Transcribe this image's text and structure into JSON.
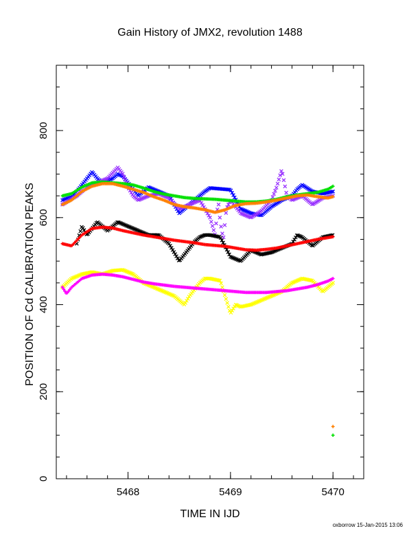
{
  "chart_data": {
    "type": "scatter",
    "title": "Gain History of JMX2, revolution 1488",
    "xlabel": "TIME IN IJD",
    "ylabel": "POSITION OF Cd CALIBRATION PEAKS",
    "xlim": [
      5467.3,
      5470.3
    ],
    "ylim": [
      0,
      950
    ],
    "x_ticks": [
      5468,
      5469,
      5470
    ],
    "y_ticks": [
      0,
      200,
      400,
      600,
      800
    ],
    "grid": false,
    "footer": "oxborrow 15-Jan-2015 13:06",
    "legend_markers": [
      {
        "color": "#ff8000",
        "x": 5470.0,
        "y": 120
      },
      {
        "color": "#00e000",
        "x": 5470.0,
        "y": 100
      }
    ],
    "series": [
      {
        "color": "#0000ff",
        "marker": "x",
        "x": [
          5467.36,
          5467.45,
          5467.5,
          5467.55,
          5467.6,
          5467.65,
          5467.7,
          5467.75,
          5467.8,
          5467.85,
          5467.9,
          5467.95,
          5468.0,
          5468.05,
          5468.1,
          5468.2,
          5468.3,
          5468.4,
          5468.5,
          5468.55,
          5468.6,
          5468.65,
          5468.7,
          5468.75,
          5468.8,
          5468.9,
          5469.0,
          5469.1,
          5469.2,
          5469.3,
          5469.4,
          5469.5,
          5469.6,
          5469.65,
          5469.7,
          5469.8,
          5469.9,
          5470.0
        ],
        "y": [
          640,
          648,
          660,
          675,
          690,
          705,
          690,
          680,
          685,
          690,
          700,
          695,
          680,
          665,
          650,
          670,
          660,
          650,
          610,
          620,
          630,
          640,
          650,
          660,
          668,
          666,
          664,
          620,
          610,
          605,
          625,
          640,
          650,
          665,
          675,
          660,
          655,
          660
        ]
      },
      {
        "color": "#9933ff",
        "marker": "x",
        "x": [
          5467.36,
          5467.5,
          5467.6,
          5467.7,
          5467.8,
          5467.9,
          5467.95,
          5468.0,
          5468.05,
          5468.1,
          5468.2,
          5468.3,
          5468.4,
          5468.5,
          5468.6,
          5468.7,
          5468.8,
          5468.85,
          5468.88,
          5468.9,
          5468.93,
          5468.96,
          5469.0,
          5469.1,
          5469.2,
          5469.3,
          5469.4,
          5469.45,
          5469.5,
          5469.55,
          5469.6,
          5469.7,
          5469.8,
          5469.9,
          5470.0
        ],
        "y": [
          630,
          650,
          670,
          680,
          690,
          715,
          700,
          670,
          650,
          640,
          650,
          655,
          645,
          620,
          630,
          640,
          600,
          560,
          640,
          590,
          550,
          620,
          640,
          610,
          600,
          615,
          640,
          670,
          710,
          650,
          640,
          650,
          630,
          645,
          650
        ]
      },
      {
        "color": "#00e000",
        "marker": "+",
        "x": [
          5467.36,
          5467.45,
          5467.55,
          5467.65,
          5467.75,
          5467.85,
          5467.95,
          5468.05,
          5468.15,
          5468.25,
          5468.35,
          5468.45,
          5468.55,
          5468.65,
          5468.75,
          5468.85,
          5468.95,
          5469.05,
          5469.15,
          5469.25,
          5469.35,
          5469.45,
          5469.55,
          5469.65,
          5469.75,
          5469.85,
          5469.95,
          5470.0
        ],
        "y": [
          650,
          655,
          670,
          680,
          682,
          680,
          678,
          675,
          668,
          660,
          654,
          650,
          646,
          644,
          643,
          642,
          640,
          638,
          636,
          636,
          638,
          642,
          648,
          652,
          655,
          658,
          665,
          672
        ]
      },
      {
        "color": "#ff8000",
        "marker": "+",
        "x": [
          5467.36,
          5467.45,
          5467.55,
          5467.65,
          5467.75,
          5467.85,
          5467.95,
          5468.05,
          5468.15,
          5468.25,
          5468.35,
          5468.45,
          5468.55,
          5468.65,
          5468.75,
          5468.85,
          5468.95,
          5469.05,
          5469.15,
          5469.25,
          5469.35,
          5469.45,
          5469.55,
          5469.65,
          5469.75,
          5469.85,
          5469.95,
          5470.0
        ],
        "y": [
          630,
          640,
          660,
          672,
          678,
          678,
          672,
          665,
          658,
          648,
          640,
          630,
          625,
          622,
          618,
          612,
          618,
          628,
          632,
          633,
          636,
          640,
          645,
          650,
          652,
          648,
          645,
          648
        ]
      },
      {
        "color": "#000000",
        "marker": "x",
        "x": [
          5467.5,
          5467.55,
          5467.6,
          5467.7,
          5467.8,
          5467.9,
          5468.0,
          5468.1,
          5468.2,
          5468.3,
          5468.4,
          5468.5,
          5468.55,
          5468.6,
          5468.65,
          5468.7,
          5468.75,
          5468.8,
          5468.9,
          5469.0,
          5469.1,
          5469.2,
          5469.3,
          5469.4,
          5469.5,
          5469.6,
          5469.65,
          5469.7,
          5469.75,
          5469.8,
          5469.9,
          5470.0
        ],
        "y": [
          540,
          580,
          560,
          590,
          570,
          590,
          580,
          570,
          560,
          560,
          540,
          500,
          515,
          530,
          545,
          555,
          560,
          560,
          555,
          510,
          500,
          525,
          515,
          520,
          530,
          540,
          560,
          555,
          545,
          535,
          555,
          560
        ]
      },
      {
        "color": "#ff0000",
        "marker": "+",
        "x": [
          5467.36,
          5467.45,
          5467.55,
          5467.65,
          5467.75,
          5467.85,
          5467.95,
          5468.05,
          5468.15,
          5468.25,
          5468.35,
          5468.45,
          5468.55,
          5468.65,
          5468.75,
          5468.85,
          5468.95,
          5469.05,
          5469.15,
          5469.25,
          5469.35,
          5469.45,
          5469.55,
          5469.65,
          5469.75,
          5469.85,
          5469.95,
          5470.0
        ],
        "y": [
          540,
          535,
          560,
          575,
          578,
          576,
          570,
          565,
          560,
          556,
          552,
          548,
          545,
          542,
          538,
          536,
          534,
          530,
          526,
          525,
          527,
          530,
          535,
          540,
          545,
          550,
          554,
          556
        ]
      },
      {
        "color": "#ffff00",
        "marker": "x",
        "x": [
          5467.36,
          5467.45,
          5467.55,
          5467.65,
          5467.75,
          5467.85,
          5467.95,
          5468.05,
          5468.15,
          5468.25,
          5468.35,
          5468.45,
          5468.55,
          5468.6,
          5468.65,
          5468.7,
          5468.75,
          5468.8,
          5468.9,
          5469.0,
          5469.05,
          5469.1,
          5469.2,
          5469.3,
          5469.4,
          5469.5,
          5469.6,
          5469.7,
          5469.8,
          5469.9,
          5470.0
        ],
        "y": [
          440,
          460,
          470,
          475,
          470,
          478,
          480,
          470,
          450,
          440,
          430,
          420,
          400,
          420,
          435,
          450,
          460,
          460,
          455,
          380,
          400,
          395,
          400,
          410,
          420,
          430,
          450,
          460,
          455,
          430,
          450
        ]
      },
      {
        "color": "#ff00ff",
        "marker": "+",
        "x": [
          5467.36,
          5467.4,
          5467.45,
          5467.55,
          5467.65,
          5467.75,
          5467.85,
          5467.95,
          5468.05,
          5468.15,
          5468.25,
          5468.35,
          5468.45,
          5468.55,
          5468.65,
          5468.75,
          5468.85,
          5468.95,
          5469.05,
          5469.15,
          5469.25,
          5469.35,
          5469.45,
          5469.55,
          5469.65,
          5469.75,
          5469.85,
          5469.95,
          5470.0
        ],
        "y": [
          440,
          425,
          440,
          460,
          468,
          470,
          468,
          464,
          458,
          452,
          448,
          445,
          442,
          440,
          438,
          436,
          434,
          432,
          430,
          428,
          428,
          428,
          430,
          432,
          436,
          440,
          446,
          454,
          460
        ]
      }
    ]
  }
}
